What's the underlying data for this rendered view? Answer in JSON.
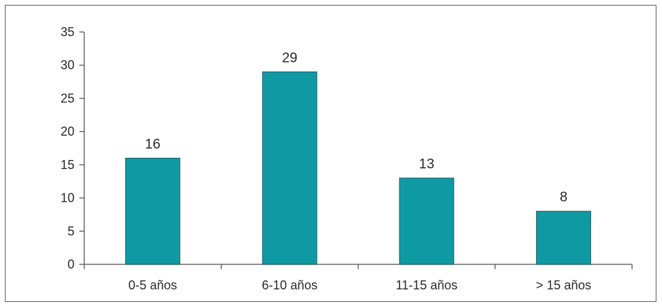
{
  "chart_data": {
    "type": "bar",
    "title": "",
    "xlabel": "",
    "ylabel": "",
    "categories": [
      "0-5 años",
      "6-10 años",
      "11-15 años",
      "> 15 años"
    ],
    "values": [
      16,
      29,
      13,
      8
    ],
    "data_labels": [
      "16",
      "29",
      "13",
      "8"
    ],
    "ylim": [
      0,
      35
    ],
    "yticks": [
      0,
      5,
      10,
      15,
      20,
      25,
      30,
      35
    ],
    "ytick_labels": [
      "0",
      "5",
      "10",
      "15",
      "20",
      "25",
      "30",
      "35"
    ],
    "grid": false,
    "legend": "none",
    "colors": {
      "bar": "#0f9aa3",
      "axis": "#6a6a6a",
      "text": "#2a2a2a",
      "frame": "#5a5a5a"
    }
  }
}
